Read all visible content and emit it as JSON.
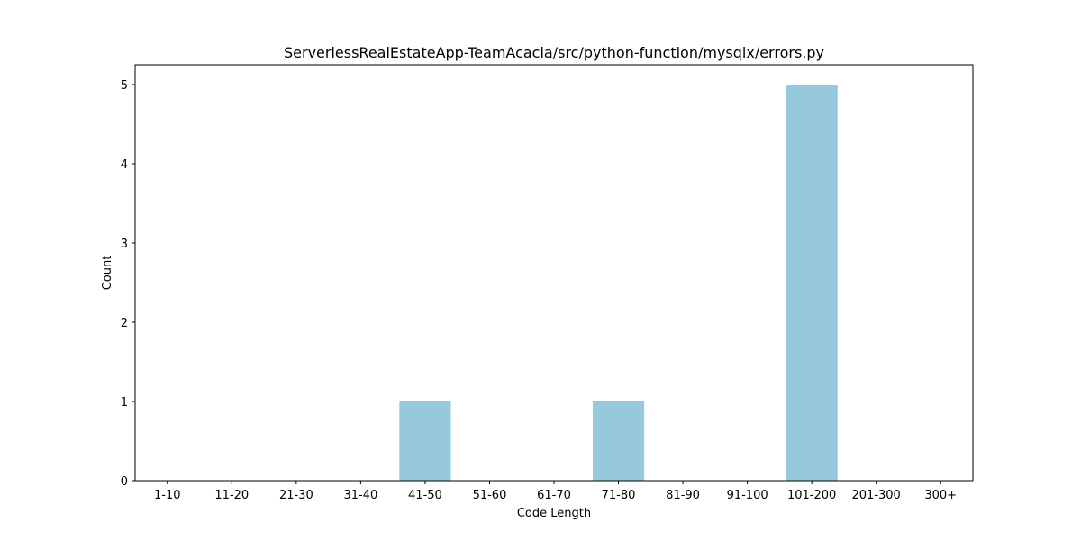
{
  "chart_data": {
    "type": "bar",
    "title": "ServerlessRealEstateApp-TeamAcacia/src/python-function/mysqlx/errors.py",
    "xlabel": "Code Length",
    "ylabel": "Count",
    "categories": [
      "1-10",
      "11-20",
      "21-30",
      "31-40",
      "41-50",
      "51-60",
      "61-70",
      "71-80",
      "81-90",
      "91-100",
      "101-200",
      "201-300",
      "300+"
    ],
    "values": [
      0,
      0,
      0,
      0,
      1,
      0,
      0,
      1,
      0,
      0,
      5,
      0,
      0
    ],
    "ylim": [
      0,
      5.25
    ],
    "yticks": [
      0,
      1,
      2,
      3,
      4,
      5
    ],
    "bar_color": "#96c9dc",
    "grid": false,
    "legend": "none"
  }
}
